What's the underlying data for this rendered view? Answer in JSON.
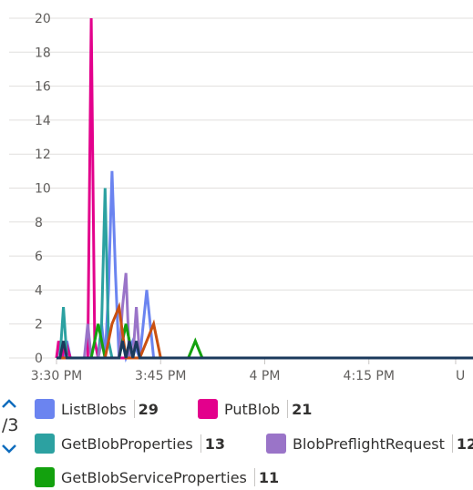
{
  "chart_data": {
    "type": "line",
    "y_ticks": [
      "0",
      "2",
      "4",
      "6",
      "8",
      "10",
      "12",
      "14",
      "16",
      "18",
      "20"
    ],
    "ylim": [
      0,
      20
    ],
    "x_ticks": [
      "3:30 PM",
      "3:45 PM",
      "4 PM",
      "4:15 PM",
      "U"
    ],
    "xlim_minutes": [
      0,
      60
    ],
    "x_tick_minutes": [
      0,
      15,
      30,
      45,
      57.5
    ],
    "grid": true,
    "series": [
      {
        "name": "ListBlobs",
        "color": "#6b84f0",
        "x": [
          0,
          0.5,
          1,
          1.5,
          2,
          3,
          4,
          5,
          6,
          6.5,
          7,
          7.5,
          8,
          8.5,
          9,
          9.5,
          10,
          11,
          12,
          13,
          14,
          15,
          16,
          17,
          18,
          60
        ],
        "y": [
          0,
          1,
          0,
          1,
          0,
          0,
          0,
          0,
          0,
          2,
          0,
          4,
          11,
          5,
          0,
          1,
          0,
          1,
          0,
          4,
          0,
          0,
          0,
          0,
          0,
          0
        ]
      },
      {
        "name": "PutBlob",
        "color": "#e3008c",
        "x": [
          0,
          0.3,
          0.8,
          1.3,
          2,
          3,
          4,
          4.5,
          5,
          5.5,
          6,
          60
        ],
        "y": [
          0,
          1,
          0,
          1,
          0,
          0,
          0,
          0,
          20,
          1,
          0,
          0
        ]
      },
      {
        "name": "GetBlobProperties",
        "color": "#2ca1a1",
        "x": [
          0,
          0.5,
          1,
          1.5,
          2,
          3,
          4,
          5,
          6,
          6.5,
          7,
          7.5,
          8,
          9,
          10,
          11,
          12,
          60
        ],
        "y": [
          0,
          0,
          3,
          0,
          0,
          0,
          0,
          0,
          0,
          2,
          10,
          1,
          0,
          0,
          2,
          0,
          0,
          0
        ]
      },
      {
        "name": "BlobPreflightRequest",
        "color": "#9a74c8",
        "x": [
          0,
          3,
          4,
          4.5,
          5,
          5.5,
          6,
          6.5,
          7,
          8,
          9,
          9.5,
          10,
          10.5,
          11,
          11.5,
          12,
          60
        ],
        "y": [
          0,
          0,
          0,
          2,
          0,
          0,
          0,
          1,
          0,
          0,
          0,
          3,
          5,
          0,
          0,
          3,
          0,
          0
        ]
      },
      {
        "name": "GetBlobServiceProperties",
        "color": "#13a10e",
        "x": [
          0,
          5,
          6,
          7,
          8,
          9,
          10,
          11,
          12,
          13,
          19,
          20,
          21,
          60
        ],
        "y": [
          0,
          0,
          2,
          0,
          0,
          0,
          2,
          0,
          0,
          0,
          0,
          1,
          0,
          0
        ]
      },
      {
        "name": "",
        "color": "#ca5010",
        "x": [
          0,
          6,
          7,
          8,
          9,
          10,
          11,
          12,
          13,
          14,
          15,
          60
        ],
        "y": [
          0,
          0,
          0,
          2,
          3,
          0,
          0,
          0,
          1,
          2,
          0,
          0
        ]
      },
      {
        "name": "",
        "color": "#1b3a5c",
        "x": [
          0,
          0.5,
          1,
          1.5,
          2,
          3,
          8,
          9,
          9.5,
          10,
          10.5,
          11,
          11.5,
          12,
          60
        ],
        "y": [
          0,
          0,
          1,
          0,
          0,
          0,
          0,
          0,
          1,
          0,
          1,
          0,
          1,
          0,
          0
        ]
      }
    ]
  },
  "legend": {
    "page_text": "/3",
    "items": [
      {
        "label": "ListBlobs",
        "count": "29",
        "color": "#6b84f0"
      },
      {
        "label": "PutBlob",
        "count": "21",
        "color": "#e3008c"
      },
      {
        "label": "GetBlobProperties",
        "count": "13",
        "color": "#2ca1a1"
      },
      {
        "label": "BlobPreflightRequest",
        "count": "12",
        "color": "#9a74c8"
      },
      {
        "label": "GetBlobServiceProperties",
        "count": "11",
        "color": "#13a10e"
      }
    ]
  }
}
